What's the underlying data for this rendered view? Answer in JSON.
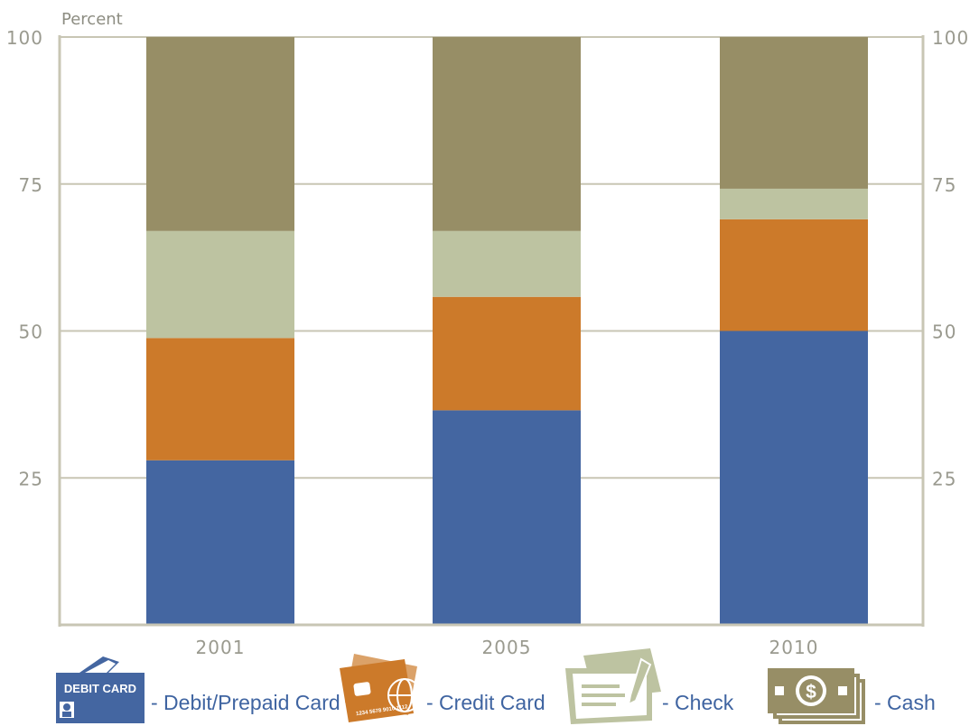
{
  "chart_data": {
    "type": "bar",
    "stacked": true,
    "ylabel": "Percent",
    "ylim": [
      0,
      100
    ],
    "yticks": [
      25,
      50,
      75,
      100
    ],
    "grid": true,
    "categories": [
      "2001",
      "2005",
      "2010"
    ],
    "series": [
      {
        "name": "Debit/Prepaid Card",
        "color": "#4466a1",
        "values": [
          28,
          36.5,
          50
        ]
      },
      {
        "name": "Credit Card",
        "color": "#cc7a2a",
        "values": [
          20.8,
          19.3,
          19
        ]
      },
      {
        "name": "Check",
        "color": "#bdc3a1",
        "values": [
          18.2,
          11.2,
          5.2
        ]
      },
      {
        "name": "Cash",
        "color": "#978e66",
        "values": [
          33,
          33,
          25.8
        ]
      }
    ],
    "legend": {
      "placement": "bottom",
      "items": [
        {
          "icon": "debit-card-icon",
          "label": "- Debit/Prepaid Card",
          "icon_text": "DEBIT CARD"
        },
        {
          "icon": "credit-card-icon",
          "label": "- Credit Card",
          "icon_text": "1234 5678 9010 1112"
        },
        {
          "icon": "check-icon",
          "label": "- Check"
        },
        {
          "icon": "cash-icon",
          "label": "- Cash",
          "icon_text": "$"
        }
      ]
    }
  }
}
